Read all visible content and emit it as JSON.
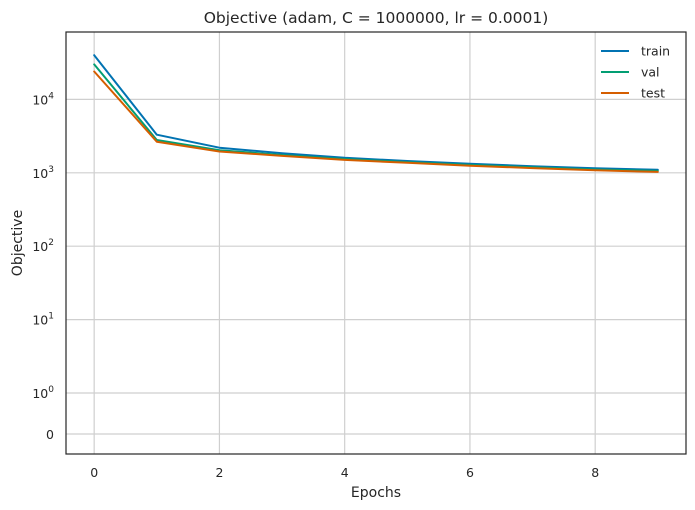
{
  "chart_data": {
    "type": "line",
    "title": "Objective (adam, C = 1000000, lr = 0.0001)",
    "xlabel": "Epochs",
    "ylabel": "Objective",
    "xlim": [
      -0.45,
      9.45
    ],
    "x_ticks": [
      0,
      2,
      4,
      6,
      8
    ],
    "y_scale": "symlog",
    "y_ticks": [
      {
        "value": 0,
        "base": "0",
        "exp": ""
      },
      {
        "value": 1,
        "base": "10",
        "exp": "0"
      },
      {
        "value": 10,
        "base": "10",
        "exp": "1"
      },
      {
        "value": 100,
        "base": "10",
        "exp": "2"
      },
      {
        "value": 1000,
        "base": "10",
        "exp": "3"
      },
      {
        "value": 10000,
        "base": "10",
        "exp": "4"
      }
    ],
    "grid": true,
    "legend_position": "top-right",
    "x": [
      0,
      1,
      2,
      3,
      4,
      5,
      6,
      7,
      8,
      9
    ],
    "series": [
      {
        "name": "train",
        "color": "#0173b2",
        "values": [
          40000,
          3300,
          2200,
          1850,
          1600,
          1450,
          1330,
          1230,
          1150,
          1100
        ]
      },
      {
        "name": "val",
        "color": "#029e73",
        "values": [
          30000,
          2800,
          2030,
          1750,
          1540,
          1400,
          1280,
          1190,
          1110,
          1060
        ]
      },
      {
        "name": "test",
        "color": "#d55e00",
        "values": [
          24000,
          2650,
          1950,
          1700,
          1500,
          1370,
          1250,
          1160,
          1080,
          1030
        ]
      }
    ]
  }
}
